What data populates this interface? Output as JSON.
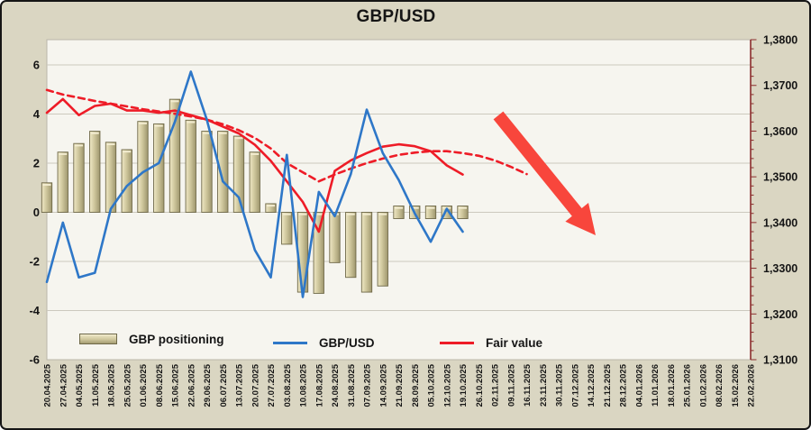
{
  "title": "GBP/USD",
  "legend": {
    "items": [
      {
        "label": "GBP positioning",
        "swatch": "khaki-3d-bar",
        "color": "#cfc79d"
      },
      {
        "label": "GBP/USD",
        "swatch": "blue-line",
        "color": "#2e77c8"
      },
      {
        "label": "Fair value",
        "swatch": "red-line",
        "color": "#ee1c27"
      }
    ]
  },
  "chart_data": {
    "type": "combo-bar-line",
    "title": "GBP/USD",
    "grid": "horizontal-on",
    "legend_position": "bottom-inside",
    "categories": [
      "20.04.2025",
      "27.04.2025",
      "04.05.2025",
      "11.05.2025",
      "18.05.2025",
      "25.05.2025",
      "01.06.2025",
      "08.06.2025",
      "15.06.2025",
      "22.06.2025",
      "29.06.2025",
      "06.07.2025",
      "13.07.2025",
      "20.07.2025",
      "27.07.2025",
      "03.08.2025",
      "10.08.2025",
      "17.08.2025",
      "24.08.2025",
      "31.08.2025",
      "07.09.2025",
      "14.09.2025",
      "21.09.2025",
      "28.09.2025",
      "05.10.2025",
      "12.10.2025",
      "19.10.2025",
      "26.10.2025",
      "02.11.2025",
      "09.11.2025",
      "16.11.2025",
      "23.11.2025",
      "30.11.2025",
      "07.12.2025",
      "14.12.2025",
      "21.12.2025",
      "28.12.2025",
      "04.01.2026",
      "11.01.2026",
      "18.01.2026",
      "25.01.2026",
      "01.02.2026",
      "08.02.2026",
      "15.02.2026",
      "22.02.2026"
    ],
    "left_axis": {
      "tick_labels": [
        "6",
        "4",
        "2",
        "0",
        "-2",
        "-4",
        "-6"
      ],
      "tick_values": [
        6,
        4,
        2,
        0,
        -2,
        -4,
        -6
      ],
      "range": [
        -6,
        6
      ]
    },
    "right_axis": {
      "tick_labels": [
        "1,3800",
        "1,3700",
        "1,3600",
        "1,3500",
        "1,3400",
        "1,3300",
        "1,3200",
        "1,3100"
      ],
      "tick_values": [
        1.38,
        1.37,
        1.36,
        1.35,
        1.34,
        1.33,
        1.32,
        1.31
      ],
      "range": [
        1.31,
        1.38
      ],
      "minor_tick_step": 0.002,
      "axis_color": "#8b2d2d"
    },
    "series": [
      {
        "name": "GBP positioning",
        "type": "bar",
        "axis": "left",
        "color": "#cfc79d",
        "values": [
          1.2,
          2.45,
          2.8,
          3.3,
          2.85,
          2.55,
          3.7,
          3.6,
          4.6,
          3.75,
          3.3,
          3.3,
          3.1,
          2.45,
          0.35,
          -1.3,
          -3.25,
          -3.3,
          -2.05,
          -2.65,
          -3.25,
          -3.0,
          0.2,
          0.2,
          0.2,
          0.2,
          0.2
        ]
      },
      {
        "name": "GBP/USD",
        "type": "line",
        "axis": "right",
        "color": "#2e77c8",
        "values": [
          1.327,
          1.34,
          1.328,
          1.329,
          1.343,
          1.348,
          1.351,
          1.353,
          1.362,
          1.373,
          1.3625,
          1.349,
          1.3455,
          1.334,
          1.328,
          1.3548,
          1.3237,
          1.3467,
          1.3414,
          1.3506,
          1.3647,
          1.3552,
          1.3493,
          1.342,
          1.3358,
          1.343,
          1.338
        ]
      },
      {
        "name": "Fair value",
        "type": "line",
        "axis": "right",
        "color": "#ee1c27",
        "values": [
          1.364,
          1.367,
          1.3635,
          1.3655,
          1.366,
          1.3645,
          1.3645,
          1.364,
          1.3645,
          1.3635,
          1.3625,
          1.361,
          1.3595,
          1.357,
          1.3535,
          1.349,
          1.3445,
          1.338,
          1.3513,
          1.3536,
          1.3552,
          1.3566,
          1.3571,
          1.3567,
          1.3556,
          1.3525,
          1.3505
        ]
      },
      {
        "name": "Fair value trend (dashed)",
        "type": "dashed-line",
        "axis": "right",
        "color": "#ee1c27",
        "values": [
          1.369,
          1.368,
          1.3673,
          1.3666,
          1.366,
          1.3654,
          1.3648,
          1.3643,
          1.3638,
          1.3632,
          1.3625,
          1.3615,
          1.3602,
          1.3585,
          1.3562,
          1.353,
          1.351,
          1.349,
          1.3505,
          1.3518,
          1.353,
          1.354,
          1.3548,
          1.3553,
          1.3556,
          1.3556,
          1.3552,
          1.3546,
          1.3536,
          1.3522,
          1.3506
        ]
      }
    ],
    "annotation": {
      "type": "arrow",
      "direction": "down-right",
      "color": "#f8463c",
      "meaning": "projected decline"
    }
  }
}
